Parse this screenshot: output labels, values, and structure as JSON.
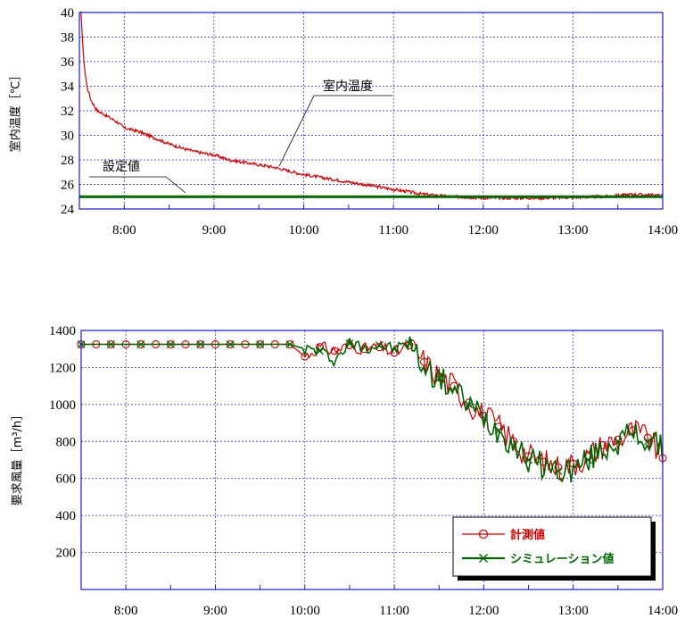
{
  "chart_data": [
    {
      "type": "line",
      "ylabel": "室内温度［℃］",
      "xlabel": "",
      "x_ticks": [
        "8:00",
        "9:00",
        "10:00",
        "11:00",
        "12:00",
        "13:00",
        "14:00"
      ],
      "x_range": [
        "7:30",
        "14:00"
      ],
      "y_ticks": [
        24,
        26,
        28,
        30,
        32,
        34,
        36,
        38,
        40
      ],
      "ylim": [
        24,
        40
      ],
      "grid": true,
      "annotations": [
        {
          "text": "室内温度",
          "target": "series-0"
        },
        {
          "text": "設定値",
          "target": "series-1"
        }
      ],
      "series": [
        {
          "name": "室内温度",
          "color": "#cc0000",
          "x": [
            "7:31",
            "7:33",
            "7:35",
            "7:38",
            "7:42",
            "7:48",
            "7:55",
            "8:00",
            "8:10",
            "8:20",
            "8:30",
            "8:40",
            "8:50",
            "9:00",
            "9:10",
            "9:20",
            "9:30",
            "9:40",
            "9:50",
            "10:00",
            "10:10",
            "10:20",
            "10:30",
            "10:40",
            "10:50",
            "11:00",
            "11:10",
            "11:20",
            "11:30",
            "11:40",
            "11:50",
            "12:00",
            "12:20",
            "12:40",
            "13:00",
            "13:20",
            "13:40",
            "14:00"
          ],
          "values": [
            40.0,
            36.0,
            34.0,
            32.8,
            32.0,
            31.6,
            31.1,
            30.6,
            30.3,
            29.8,
            29.3,
            28.9,
            28.6,
            28.4,
            28.0,
            27.8,
            27.6,
            27.4,
            27.1,
            26.8,
            26.6,
            26.4,
            26.2,
            26.0,
            25.8,
            25.6,
            25.4,
            25.2,
            25.1,
            25.0,
            24.95,
            24.9,
            24.9,
            24.9,
            24.95,
            25.0,
            25.2,
            25.1
          ]
        },
        {
          "name": "設定値",
          "color": "#006400",
          "x": [
            "7:30",
            "14:00"
          ],
          "values": [
            25.0,
            25.0
          ]
        }
      ]
    },
    {
      "type": "line",
      "ylabel": "要求風量［m³/h］",
      "xlabel": "",
      "x_ticks": [
        "8:00",
        "9:00",
        "10:00",
        "11:00",
        "12:00",
        "13:00",
        "14:00"
      ],
      "x_range": [
        "7:30",
        "14:00"
      ],
      "y_ticks": [
        200,
        400,
        600,
        800,
        1000,
        1200,
        1400
      ],
      "ylim": [
        0,
        1400
      ],
      "grid": true,
      "legend_position": "bottom-right",
      "series": [
        {
          "name": "計測値",
          "color": "#cc0000",
          "marker": "circle",
          "x": [
            "7:30",
            "7:40",
            "7:50",
            "8:00",
            "8:10",
            "8:20",
            "8:30",
            "8:40",
            "8:50",
            "9:00",
            "9:10",
            "9:20",
            "9:30",
            "9:40",
            "9:50",
            "10:00",
            "10:10",
            "10:20",
            "10:30",
            "10:40",
            "10:50",
            "11:00",
            "11:10",
            "11:20",
            "11:30",
            "11:40",
            "11:50",
            "12:00",
            "12:10",
            "12:20",
            "12:30",
            "12:40",
            "12:50",
            "13:00",
            "13:10",
            "13:20",
            "13:30",
            "13:40",
            "13:50",
            "14:00"
          ],
          "values": [
            1325,
            1325,
            1325,
            1325,
            1325,
            1325,
            1325,
            1325,
            1325,
            1325,
            1325,
            1325,
            1325,
            1325,
            1325,
            1260,
            1310,
            1290,
            1320,
            1300,
            1310,
            1280,
            1320,
            1230,
            1150,
            1100,
            1010,
            940,
            880,
            800,
            720,
            690,
            660,
            680,
            720,
            780,
            810,
            860,
            820,
            710
          ]
        },
        {
          "name": "シミュレーション値",
          "color": "#006400",
          "marker": "x",
          "x": [
            "7:30",
            "7:40",
            "7:50",
            "8:00",
            "8:10",
            "8:20",
            "8:30",
            "8:40",
            "8:50",
            "9:00",
            "9:10",
            "9:20",
            "9:30",
            "9:40",
            "9:50",
            "10:00",
            "10:10",
            "10:20",
            "10:30",
            "10:40",
            "10:50",
            "11:00",
            "11:10",
            "11:20",
            "11:30",
            "11:40",
            "11:50",
            "12:00",
            "12:10",
            "12:20",
            "12:30",
            "12:40",
            "12:50",
            "13:00",
            "13:10",
            "13:20",
            "13:30",
            "13:40",
            "13:50",
            "14:00"
          ],
          "values": [
            1325,
            1325,
            1325,
            1325,
            1325,
            1325,
            1325,
            1325,
            1325,
            1325,
            1325,
            1325,
            1325,
            1325,
            1325,
            1300,
            1290,
            1240,
            1330,
            1310,
            1320,
            1300,
            1330,
            1200,
            1140,
            1080,
            1000,
            930,
            860,
            790,
            700,
            670,
            640,
            650,
            700,
            760,
            800,
            840,
            800,
            760
          ]
        }
      ]
    }
  ]
}
